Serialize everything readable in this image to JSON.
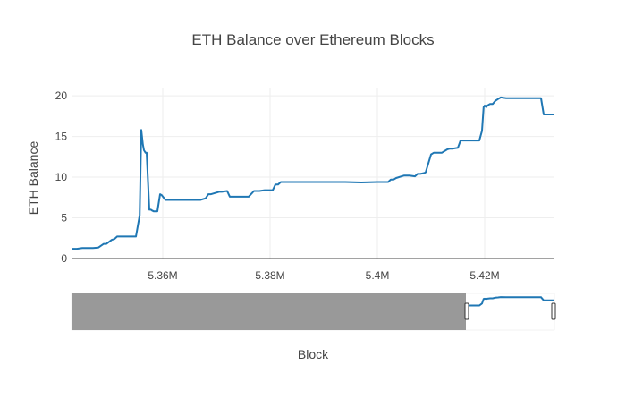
{
  "chart_data": {
    "type": "line",
    "title": "ETH Balance over Ethereum Blocks",
    "xlabel": "Block",
    "ylabel": "ETH Balance",
    "xlim": [
      5343000,
      5433000
    ],
    "ylim": [
      0,
      21
    ],
    "x_ticks": [
      {
        "value": 5360000,
        "label": "5.36M"
      },
      {
        "value": 5380000,
        "label": "5.38M"
      },
      {
        "value": 5400000,
        "label": "5.4M"
      },
      {
        "value": 5420000,
        "label": "5.42M"
      }
    ],
    "y_ticks": [
      {
        "value": 0,
        "label": "0"
      },
      {
        "value": 5,
        "label": "5"
      },
      {
        "value": 10,
        "label": "10"
      },
      {
        "value": 15,
        "label": "15"
      },
      {
        "value": 20,
        "label": "20"
      }
    ],
    "grid": true,
    "line_color": "#1f77b4",
    "rangeslider": {
      "visible": true,
      "range_start": 5343000,
      "range_end": 5433000,
      "selected_start": 5416500,
      "selected_end": 5433000,
      "mask_color": "#999999"
    },
    "series": [
      {
        "x": [
          5343000,
          5344000,
          5345000,
          5347000,
          5348000,
          5349000,
          5349500,
          5350500,
          5351000,
          5351500,
          5352000,
          5353500,
          5355000,
          5355700,
          5356000,
          5356300,
          5356500,
          5356800,
          5357000,
          5357500,
          5357800,
          5358000,
          5358300,
          5359000,
          5359500,
          5359800,
          5360500,
          5361000,
          5362000,
          5363000,
          5364000,
          5365000,
          5366000,
          5367000,
          5368000,
          5368500,
          5369000,
          5370000,
          5370500,
          5371000,
          5372000,
          5372500,
          5373000,
          5375000,
          5376000,
          5377000,
          5378000,
          5379000,
          5380000,
          5380500,
          5381000,
          5381500,
          5382000,
          5383000,
          5385000,
          5388000,
          5391000,
          5394000,
          5397000,
          5400000,
          5401000,
          5402000,
          5402500,
          5403000,
          5403500,
          5405000,
          5405500,
          5406000,
          5407000,
          5407500,
          5408000,
          5408700,
          5409000,
          5410000,
          5410500,
          5411000,
          5412000,
          5413000,
          5413500,
          5414000,
          5415000,
          5415500,
          5418000,
          5419000,
          5419500,
          5419800,
          5420000,
          5420300,
          5420500,
          5421000,
          5421500,
          5422000,
          5422500,
          5423000,
          5424000,
          5424500,
          5425000,
          5426000,
          5428000,
          5430500,
          5431000,
          5433000
        ],
        "y": [
          1.2,
          1.2,
          1.3,
          1.3,
          1.35,
          1.8,
          1.8,
          2.3,
          2.4,
          2.7,
          2.7,
          2.7,
          2.7,
          5.3,
          15.8,
          14.0,
          13.3,
          13.0,
          13.0,
          6.0,
          6.0,
          5.9,
          5.8,
          5.8,
          7.9,
          7.8,
          7.2,
          7.2,
          7.2,
          7.2,
          7.2,
          7.2,
          7.2,
          7.2,
          7.4,
          7.9,
          7.9,
          8.1,
          8.2,
          8.2,
          8.3,
          7.6,
          7.6,
          7.6,
          7.6,
          8.3,
          8.3,
          8.4,
          8.4,
          8.4,
          9.1,
          9.1,
          9.4,
          9.4,
          9.4,
          9.4,
          9.4,
          9.4,
          9.35,
          9.4,
          9.4,
          9.4,
          9.7,
          9.7,
          9.9,
          10.2,
          10.2,
          10.2,
          10.1,
          10.4,
          10.4,
          10.5,
          10.6,
          12.8,
          13.0,
          13.0,
          13.0,
          13.4,
          13.5,
          13.5,
          13.6,
          14.5,
          14.5,
          14.5,
          15.7,
          18.6,
          18.8,
          18.6,
          18.8,
          19.0,
          19.0,
          19.4,
          19.6,
          19.8,
          19.7,
          19.7,
          19.7,
          19.7,
          19.7,
          19.7,
          17.7,
          17.7
        ]
      }
    ]
  }
}
